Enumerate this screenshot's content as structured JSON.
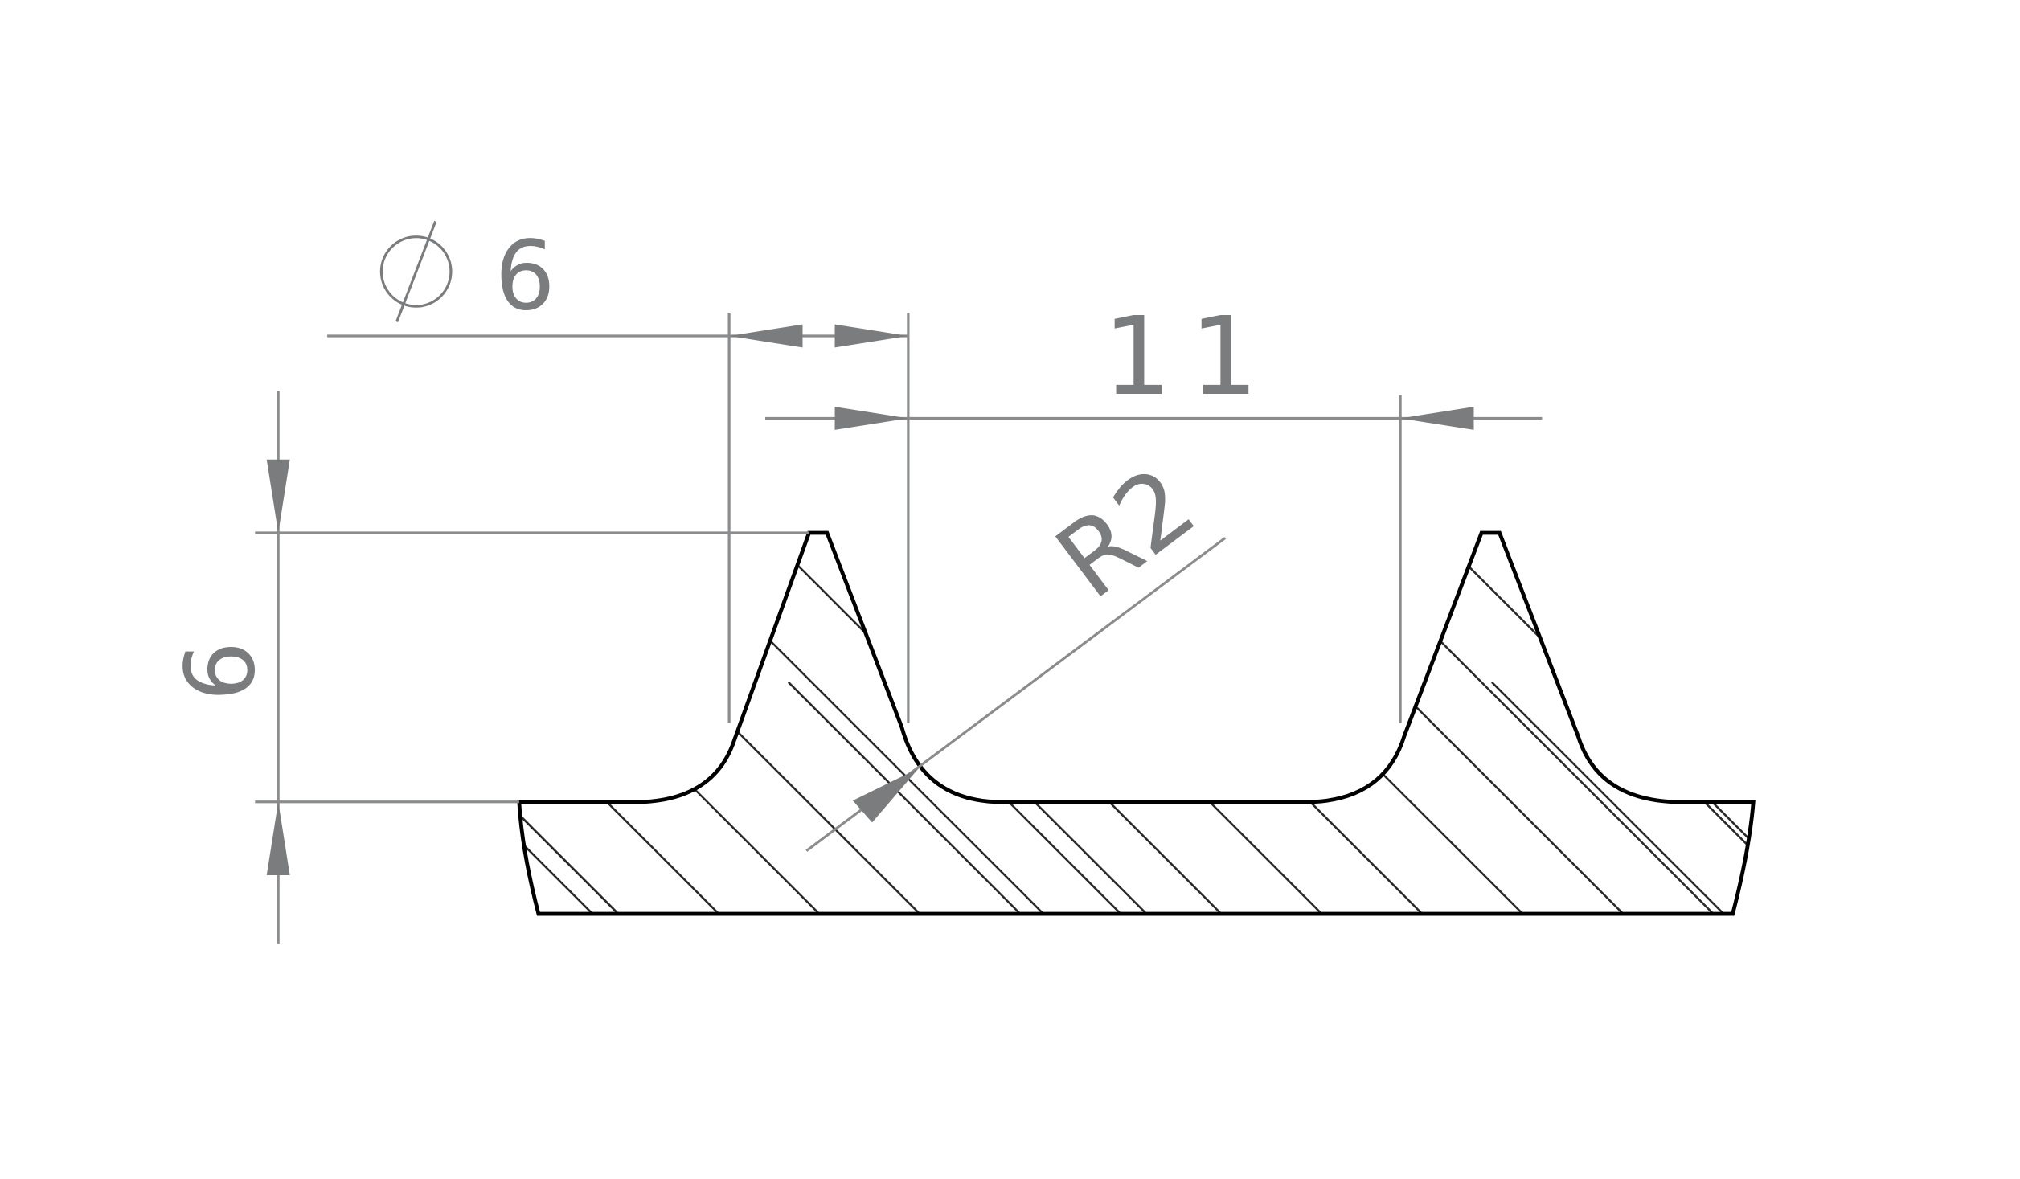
{
  "dimensions": {
    "diameter_symbol": "∅",
    "diameter_value": "6",
    "pitch": "11",
    "height": "6",
    "radius": "R2"
  },
  "colors": {
    "dimension": "#7a7c7e",
    "outline": "#000000",
    "hatch": "#2a2a2a"
  }
}
